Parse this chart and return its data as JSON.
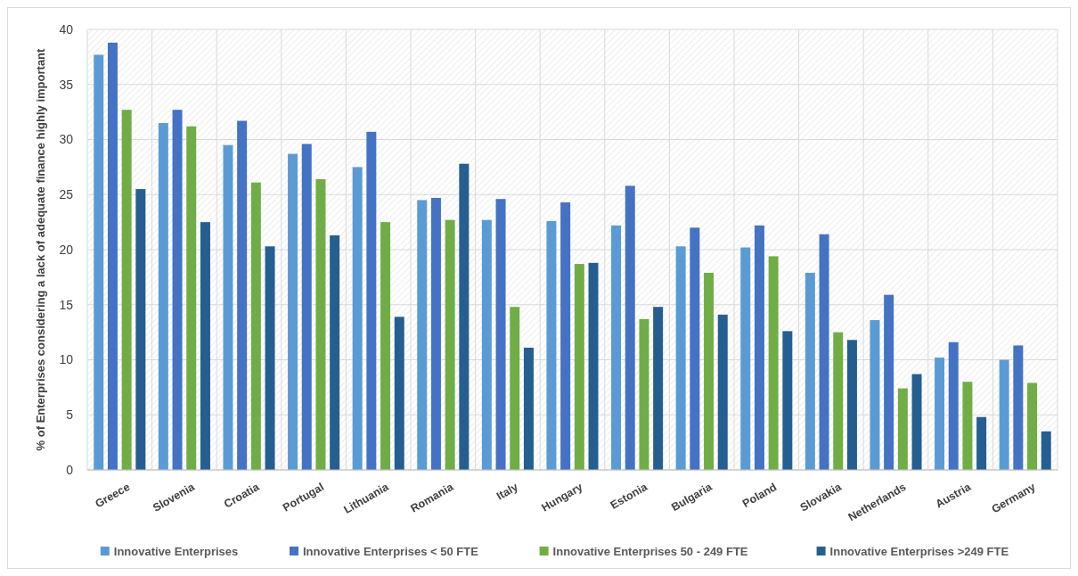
{
  "chart_data": {
    "type": "bar",
    "ylabel": "% of Enterprises considering a lack of adequate finance highly important",
    "categories": [
      "Greece",
      "Slovenia",
      "Croatia",
      "Portugal",
      "Lithuania",
      "Romania",
      "Italy",
      "Hungary",
      "Estonia",
      "Bulgaria",
      "Poland",
      "Slovakia",
      "Netherlands",
      "Austria",
      "Germany"
    ],
    "series": [
      {
        "name": "Innovative Enterprises",
        "color": "#5b9bd5",
        "values": [
          37.7,
          31.5,
          29.5,
          28.7,
          27.5,
          24.5,
          22.7,
          22.6,
          22.2,
          20.3,
          20.2,
          17.9,
          13.6,
          10.2,
          10.0
        ]
      },
      {
        "name": "Innovative Enterprises < 50 FTE",
        "color": "#4472c4",
        "values": [
          38.8,
          32.7,
          31.7,
          29.6,
          30.7,
          24.7,
          24.6,
          24.3,
          25.8,
          22.0,
          22.2,
          21.4,
          15.9,
          11.6,
          11.3
        ]
      },
      {
        "name": "Innovative Enterprises 50 - 249 FTE",
        "color": "#70ad47",
        "values": [
          32.7,
          31.2,
          26.1,
          26.4,
          22.5,
          22.7,
          14.8,
          18.7,
          13.7,
          17.9,
          19.4,
          12.5,
          7.4,
          8.0,
          7.9
        ]
      },
      {
        "name": "Innovative Enterprises >249 FTE",
        "color": "#255e91",
        "values": [
          25.5,
          22.5,
          20.3,
          21.3,
          13.9,
          27.8,
          11.1,
          18.8,
          14.8,
          14.1,
          12.6,
          11.8,
          8.7,
          4.8,
          3.5
        ]
      }
    ],
    "ylim": [
      0,
      40
    ],
    "yticks": [
      0,
      5,
      10,
      15,
      20,
      25,
      30,
      35,
      40
    ],
    "grid": true,
    "legend": "bottom"
  }
}
